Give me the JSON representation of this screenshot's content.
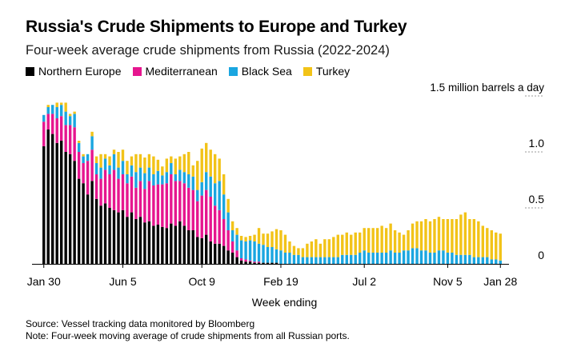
{
  "header": {
    "title": "Russia's Crude Shipments to Europe and Turkey",
    "subtitle": "Four-week average crude shipments from Russia (2022-2024)"
  },
  "footer": {
    "source": "Source: Vessel tracking data monitored by Bloomberg",
    "note": "Note: Four-week moving average of crude shipments from all Russian ports."
  },
  "colors": {
    "Northern Europe": "#000000",
    "Mediterranean": "#e6168f",
    "Black Sea": "#1aa6e0",
    "Turkey": "#f2c318"
  },
  "chart_data": {
    "type": "bar",
    "stacked": true,
    "xlabel": "Week ending",
    "ylabel": "1.5 million barrels a day",
    "ylim": [
      0,
      1.5
    ],
    "yticks": [
      0,
      0.5,
      1.0
    ],
    "ytick_labels": [
      "0",
      "0.5",
      "1.0",
      "1.5 million barrels a day"
    ],
    "xtick_labels": [
      "Jan 30",
      "Jun 5",
      "Oct 9",
      "Feb 19",
      "Jul 2",
      "Nov 5",
      "Jan 28"
    ],
    "xtick_indices": [
      0,
      18,
      36,
      54,
      73,
      92,
      104
    ],
    "grid": true,
    "legend_position": "top",
    "series": [
      {
        "name": "Northern Europe",
        "values": [
          1.05,
          1.2,
          1.16,
          1.08,
          1.1,
          1.0,
          0.98,
          0.92,
          0.76,
          0.72,
          0.62,
          0.74,
          0.58,
          0.52,
          0.54,
          0.5,
          0.48,
          0.46,
          0.48,
          0.42,
          0.46,
          0.4,
          0.42,
          0.37,
          0.38,
          0.34,
          0.35,
          0.33,
          0.32,
          0.36,
          0.34,
          0.38,
          0.34,
          0.3,
          0.3,
          0.24,
          0.23,
          0.26,
          0.2,
          0.18,
          0.18,
          0.16,
          0.12,
          0.1,
          0.06,
          0.03,
          0.02,
          0.02,
          0.01,
          0.01,
          0.01,
          0.01,
          0.01,
          0.01,
          0.0,
          0.0,
          0.0,
          0.0,
          0.0,
          0.0,
          0.0,
          0.0,
          0.0,
          0.0,
          0.0,
          0.0,
          0.0,
          0.0,
          0.0,
          0.0,
          0.0,
          0.0,
          0.0,
          0.0,
          0.0,
          0.0,
          0.0,
          0.0,
          0.0,
          0.0,
          0.0,
          0.0,
          0.0,
          0.0,
          0.0,
          0.0,
          0.0,
          0.0,
          0.0,
          0.0,
          0.0,
          0.0,
          0.0,
          0.0,
          0.0,
          0.0,
          0.0,
          0.0,
          0.0,
          0.0,
          0.0,
          0.0,
          0.0,
          0.0,
          0.0
        ]
      },
      {
        "name": "Mediterranean",
        "values": [
          0.22,
          0.14,
          0.18,
          0.22,
          0.22,
          0.24,
          0.26,
          0.3,
          0.24,
          0.18,
          0.3,
          0.28,
          0.22,
          0.24,
          0.3,
          0.3,
          0.36,
          0.3,
          0.32,
          0.3,
          0.32,
          0.28,
          0.32,
          0.3,
          0.36,
          0.36,
          0.36,
          0.38,
          0.4,
          0.44,
          0.4,
          0.36,
          0.38,
          0.38,
          0.36,
          0.32,
          0.38,
          0.4,
          0.4,
          0.34,
          0.3,
          0.24,
          0.18,
          0.1,
          0.06,
          0.02,
          0.02,
          0.01,
          0.01,
          0.01,
          0.0,
          0.0,
          0.0,
          0.0,
          0.0,
          0.0,
          0.0,
          0.0,
          0.0,
          0.0,
          0.0,
          0.0,
          0.0,
          0.0,
          0.0,
          0.0,
          0.0,
          0.0,
          0.0,
          0.0,
          0.0,
          0.0,
          0.0,
          0.0,
          0.0,
          0.0,
          0.0,
          0.0,
          0.0,
          0.0,
          0.0,
          0.0,
          0.0,
          0.0,
          0.0,
          0.0,
          0.0,
          0.0,
          0.0,
          0.0,
          0.0,
          0.0,
          0.0,
          0.0,
          0.0,
          0.0,
          0.0,
          0.0,
          0.0,
          0.0,
          0.0,
          0.0,
          0.0,
          0.0,
          0.0
        ]
      },
      {
        "name": "Black Sea",
        "values": [
          0.06,
          0.06,
          0.08,
          0.1,
          0.1,
          0.12,
          0.08,
          0.12,
          0.08,
          0.06,
          0.06,
          0.12,
          0.1,
          0.1,
          0.1,
          0.08,
          0.14,
          0.1,
          0.12,
          0.08,
          0.1,
          0.14,
          0.12,
          0.14,
          0.12,
          0.1,
          0.12,
          0.08,
          0.1,
          0.1,
          0.06,
          0.1,
          0.1,
          0.12,
          0.12,
          0.1,
          0.12,
          0.16,
          0.18,
          0.2,
          0.26,
          0.22,
          0.16,
          0.1,
          0.14,
          0.16,
          0.16,
          0.18,
          0.18,
          0.16,
          0.16,
          0.14,
          0.14,
          0.12,
          0.12,
          0.1,
          0.1,
          0.08,
          0.08,
          0.06,
          0.06,
          0.06,
          0.06,
          0.06,
          0.06,
          0.06,
          0.06,
          0.06,
          0.08,
          0.08,
          0.08,
          0.08,
          0.1,
          0.12,
          0.1,
          0.1,
          0.1,
          0.1,
          0.1,
          0.12,
          0.1,
          0.1,
          0.12,
          0.12,
          0.14,
          0.14,
          0.12,
          0.12,
          0.1,
          0.1,
          0.12,
          0.12,
          0.1,
          0.1,
          0.08,
          0.08,
          0.08,
          0.08,
          0.06,
          0.06,
          0.06,
          0.06,
          0.04,
          0.04,
          0.03
        ]
      },
      {
        "name": "Turkey",
        "values": [
          0.0,
          0.02,
          0.0,
          0.04,
          0.02,
          0.08,
          0.02,
          0.02,
          0.02,
          0.02,
          0.0,
          0.04,
          0.06,
          0.12,
          0.04,
          0.08,
          0.04,
          0.14,
          0.1,
          0.12,
          0.08,
          0.16,
          0.12,
          0.14,
          0.12,
          0.16,
          0.1,
          0.08,
          0.12,
          0.06,
          0.14,
          0.12,
          0.16,
          0.2,
          0.1,
          0.26,
          0.3,
          0.26,
          0.24,
          0.26,
          0.2,
          0.18,
          0.12,
          0.08,
          0.06,
          0.04,
          0.04,
          0.04,
          0.06,
          0.14,
          0.1,
          0.12,
          0.14,
          0.18,
          0.18,
          0.16,
          0.1,
          0.08,
          0.06,
          0.08,
          0.12,
          0.14,
          0.16,
          0.12,
          0.16,
          0.16,
          0.18,
          0.2,
          0.18,
          0.2,
          0.18,
          0.2,
          0.18,
          0.2,
          0.22,
          0.22,
          0.22,
          0.24,
          0.22,
          0.24,
          0.2,
          0.18,
          0.14,
          0.18,
          0.22,
          0.24,
          0.26,
          0.28,
          0.28,
          0.3,
          0.3,
          0.28,
          0.3,
          0.3,
          0.32,
          0.36,
          0.38,
          0.32,
          0.34,
          0.32,
          0.28,
          0.26,
          0.26,
          0.24,
          0.24
        ]
      }
    ]
  }
}
